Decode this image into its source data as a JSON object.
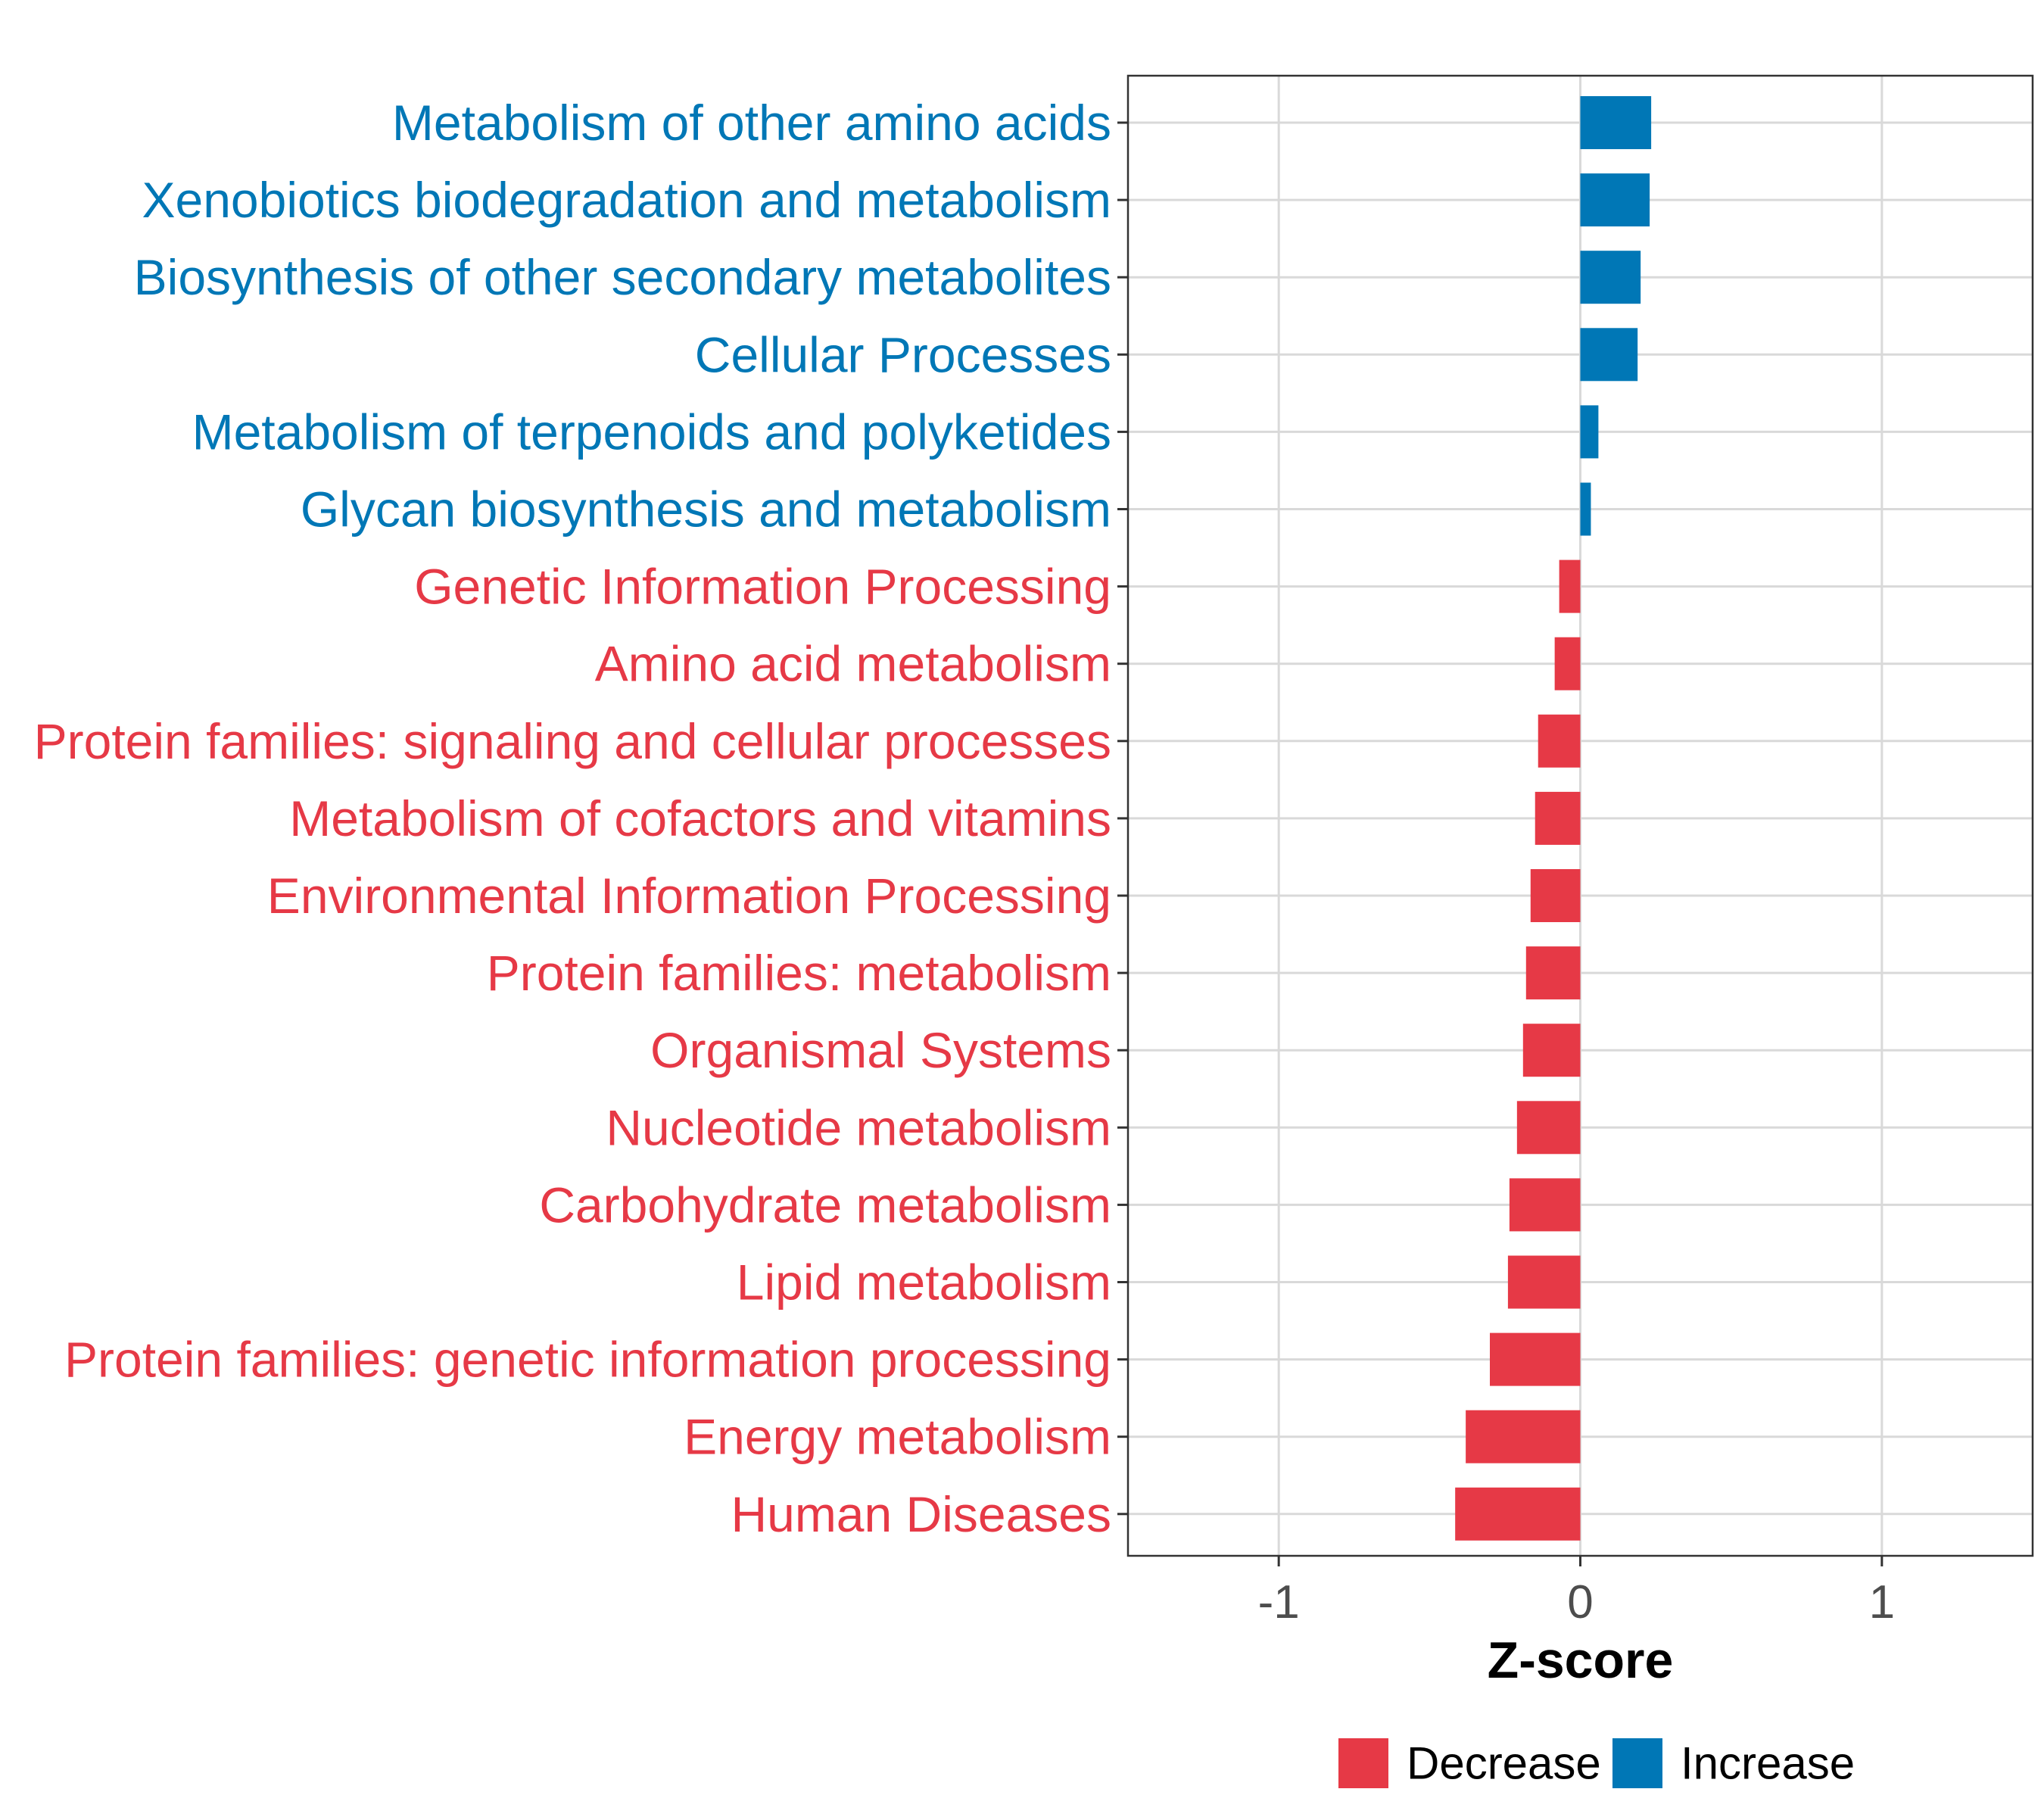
{
  "chart_data": {
    "type": "bar",
    "orientation": "horizontal",
    "title": "",
    "xlabel": "Z-score",
    "ylabel": "",
    "xlim": [
      -1.5,
      1.5
    ],
    "xticks": [
      -1,
      0,
      1
    ],
    "xtick_labels": [
      "-1",
      "0",
      "1"
    ],
    "grid": true,
    "colors": {
      "Decrease": "#e63946",
      "Increase": "#0077b6"
    },
    "categories": [
      "Metabolism of other amino acids",
      "Xenobiotics biodegradation and metabolism",
      "Biosynthesis of other secondary metabolites",
      "Cellular Processes",
      "Metabolism of terpenoids and polyketides",
      "Glycan biosynthesis and metabolism",
      "Genetic Information Processing",
      "Amino acid metabolism",
      "Protein families: signaling and cellular processes",
      "Metabolism of cofactors and vitamins",
      "Environmental Information Processing",
      "Protein families: metabolism",
      "Organismal Systems",
      "Nucleotide metabolism",
      "Carbohydrate metabolism",
      "Lipid metabolism",
      "Protein families: genetic information processing",
      "Energy metabolism",
      "Human Diseases"
    ],
    "values": [
      0.235,
      0.23,
      0.2,
      0.19,
      0.06,
      0.035,
      -0.07,
      -0.085,
      -0.14,
      -0.15,
      -0.165,
      -0.18,
      -0.19,
      -0.21,
      -0.235,
      -0.24,
      -0.3,
      -0.38,
      -0.415
    ],
    "groups": [
      "Increase",
      "Increase",
      "Increase",
      "Increase",
      "Increase",
      "Increase",
      "Decrease",
      "Decrease",
      "Decrease",
      "Decrease",
      "Decrease",
      "Decrease",
      "Decrease",
      "Decrease",
      "Decrease",
      "Decrease",
      "Decrease",
      "Decrease",
      "Decrease"
    ],
    "legend": {
      "position": "bottom",
      "entries": [
        {
          "label": "Decrease",
          "color": "#e63946"
        },
        {
          "label": "Increase",
          "color": "#0077b6"
        }
      ]
    }
  }
}
